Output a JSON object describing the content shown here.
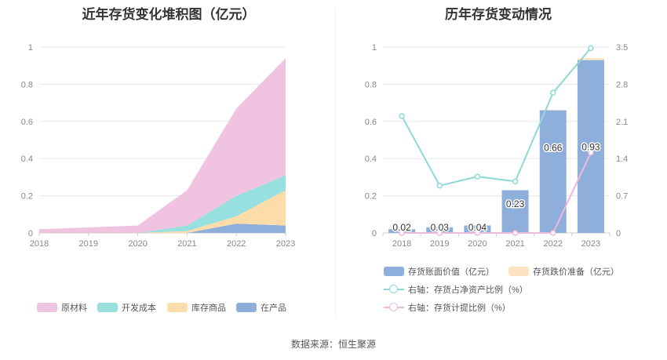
{
  "source": "数据来源：恒生聚源",
  "chart_data": [
    {
      "type": "area",
      "stacked": true,
      "title": "近年存货变化堆积图（亿元）",
      "x": [
        "2018",
        "2019",
        "2020",
        "2021",
        "2022",
        "2023"
      ],
      "ylim": [
        0,
        1
      ],
      "yticks": [
        "0",
        "0.2",
        "0.4",
        "0.6",
        "0.8",
        "1"
      ],
      "legend_position": "bottom",
      "series": [
        {
          "name": "在产品",
          "color": "#8eaedc",
          "values": [
            0.0,
            0.0,
            0.0,
            0.0,
            0.05,
            0.04
          ]
        },
        {
          "name": "库存商品",
          "color": "#fcdca8",
          "values": [
            0.0,
            0.0,
            0.0,
            0.01,
            0.04,
            0.19
          ]
        },
        {
          "name": "开发成本",
          "color": "#98dfdf",
          "values": [
            0.0,
            0.0,
            0.0,
            0.03,
            0.11,
            0.08
          ]
        },
        {
          "name": "原材料",
          "color": "#f0c4e0",
          "values": [
            0.02,
            0.03,
            0.04,
            0.19,
            0.47,
            0.63
          ]
        }
      ]
    },
    {
      "type": "bar",
      "title": "历年存货变动情况",
      "categories": [
        "2018",
        "2019",
        "2020",
        "2021",
        "2022",
        "2023"
      ],
      "ylim": [
        0,
        1
      ],
      "yticks": [
        "0",
        "0.2",
        "0.4",
        "0.6",
        "0.8",
        "1"
      ],
      "y2lim": [
        0,
        3.5
      ],
      "y2ticks": [
        "0",
        "0.7",
        "1.4",
        "2.1",
        "2.8",
        "3.5"
      ],
      "legend_position": "bottom",
      "bar_series": [
        {
          "name": "存货账面价值（亿元）",
          "color": "#8eaedc",
          "values": [
            0.02,
            0.03,
            0.04,
            0.23,
            0.66,
            0.93
          ],
          "labels": [
            "0.02",
            "0.03",
            "0.04",
            "0.23",
            "0.66",
            "0.93"
          ]
        },
        {
          "name": "存货跌价准备（亿元）",
          "color": "#fde4c0",
          "values": [
            0,
            0,
            0,
            0,
            0,
            0.01
          ]
        }
      ],
      "line_series": [
        {
          "name": "右轴：存货占净资产比例（%）",
          "color": "#8fd8d8",
          "values": [
            2.2,
            0.89,
            1.06,
            0.97,
            2.64,
            3.48
          ]
        },
        {
          "name": "右轴：存货计提比例（%）",
          "color": "#f0b8d8",
          "values": [
            0,
            0,
            0,
            0,
            0,
            1.51
          ]
        }
      ]
    }
  ]
}
